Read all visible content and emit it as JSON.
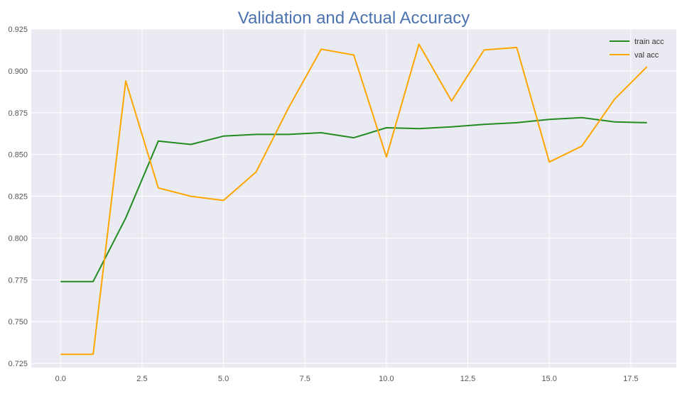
{
  "chart_data": {
    "type": "line",
    "title": "Validation and Actual Accuracy",
    "xlabel": "",
    "ylabel": "",
    "xlim": [
      -0.9,
      18.9
    ],
    "ylim": [
      0.7225,
      0.925
    ],
    "xticks": [
      0.0,
      2.5,
      5.0,
      7.5,
      10.0,
      12.5,
      15.0,
      17.5
    ],
    "xtick_labels": [
      "0.0",
      "2.5",
      "5.0",
      "7.5",
      "10.0",
      "12.5",
      "15.0",
      "17.5"
    ],
    "yticks": [
      0.725,
      0.75,
      0.775,
      0.8,
      0.825,
      0.85,
      0.875,
      0.9,
      0.925
    ],
    "ytick_labels": [
      "0.725",
      "0.750",
      "0.775",
      "0.800",
      "0.825",
      "0.850",
      "0.875",
      "0.900",
      "0.925"
    ],
    "grid": true,
    "legend_position": "top-right",
    "x": [
      0,
      1,
      2,
      3,
      4,
      5,
      6,
      7,
      8,
      9,
      10,
      11,
      12,
      13,
      14,
      15,
      16,
      17,
      18
    ],
    "series": [
      {
        "name": "train acc",
        "color": "#228b22",
        "values": [
          0.774,
          0.774,
          0.812,
          0.858,
          0.856,
          0.861,
          0.862,
          0.862,
          0.863,
          0.86,
          0.866,
          0.8655,
          0.8665,
          0.868,
          0.869,
          0.871,
          0.872,
          0.8695,
          0.869
        ]
      },
      {
        "name": "val acc",
        "color": "#ffa500",
        "values": [
          0.7305,
          0.7305,
          0.894,
          0.83,
          0.825,
          0.8225,
          0.8395,
          0.878,
          0.913,
          0.9095,
          0.8485,
          0.916,
          0.882,
          0.9125,
          0.914,
          0.8455,
          0.855,
          0.883,
          0.9025
        ]
      }
    ],
    "colors": {
      "plot_background": "#eaeaf2",
      "grid": "#ffffff",
      "title": "#4c72b0"
    }
  }
}
